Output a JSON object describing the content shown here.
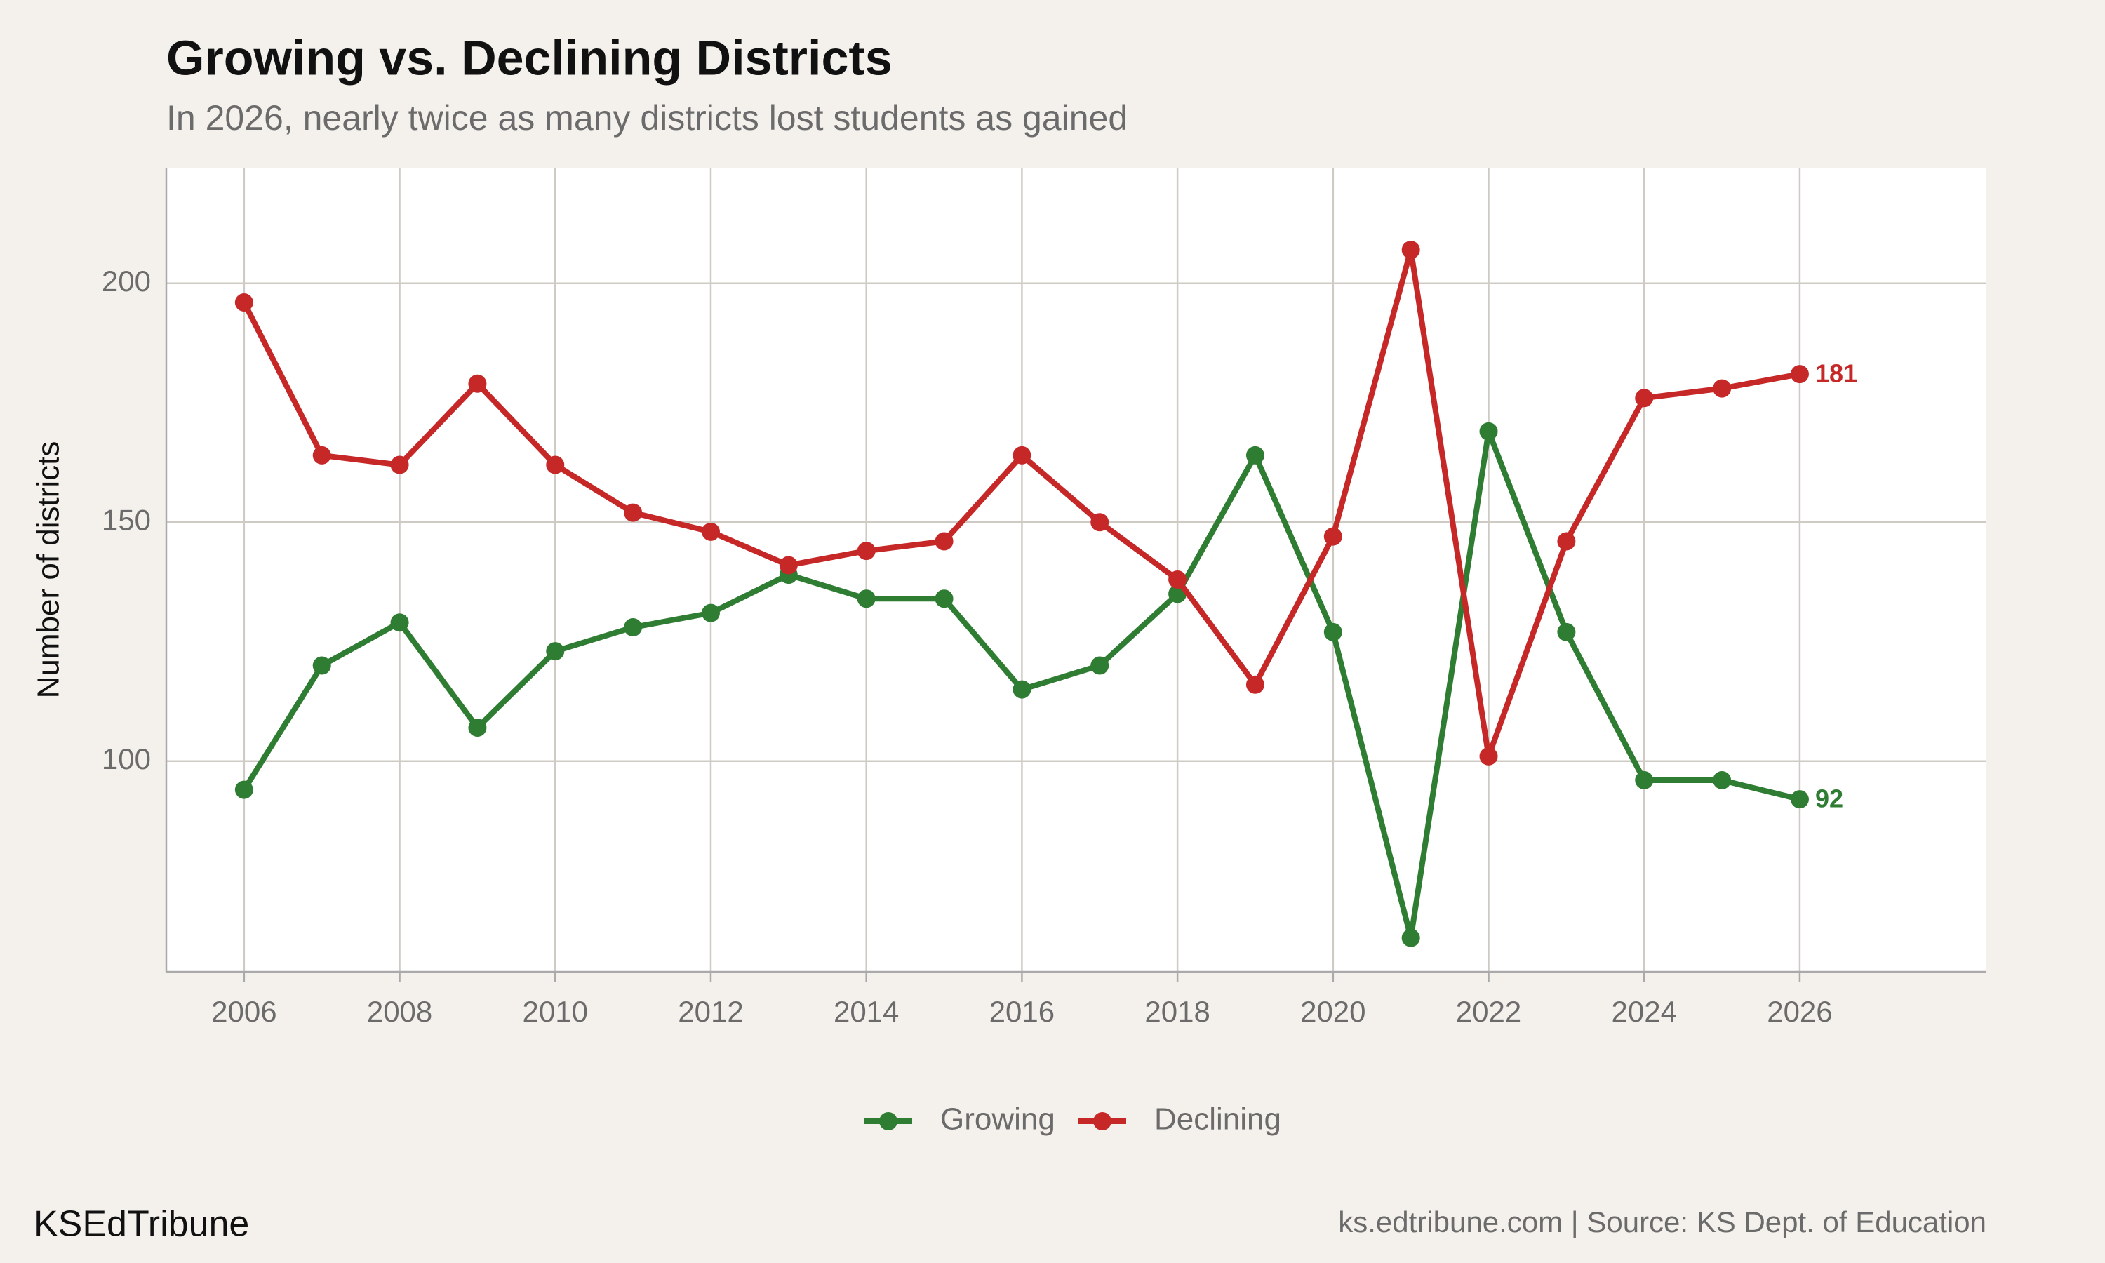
{
  "chart_data": {
    "type": "line",
    "title": "Growing vs. Declining Districts",
    "subtitle": "In 2026, nearly twice as many districts lost students as gained",
    "y_label": "Number of districts",
    "brand": "KSEdTribune",
    "caption": "ks.edtribune.com | Source: KS Dept. of Education",
    "x": [
      2006,
      2007,
      2008,
      2009,
      2010,
      2011,
      2012,
      2013,
      2014,
      2015,
      2016,
      2017,
      2018,
      2019,
      2020,
      2021,
      2022,
      2023,
      2024,
      2025,
      2026
    ],
    "series": [
      {
        "name": "Growing",
        "color": "#2e7d32",
        "values": [
          94,
          120,
          129,
          107,
          123,
          128,
          131,
          139,
          134,
          134,
          115,
          120,
          135,
          164,
          127,
          63,
          169,
          127,
          96,
          96,
          92
        ]
      },
      {
        "name": "Declining",
        "color": "#c62828",
        "values": [
          196,
          164,
          162,
          179,
          162,
          152,
          148,
          141,
          144,
          146,
          164,
          150,
          138,
          116,
          147,
          207,
          101,
          146,
          176,
          178,
          181
        ]
      }
    ],
    "xlim": [
      2005,
      2028.4
    ],
    "xticks": [
      2006,
      2008,
      2010,
      2012,
      2014,
      2016,
      2018,
      2020,
      2022,
      2024,
      2026
    ],
    "ylim": [
      55.9,
      224.2
    ],
    "yticks": [
      100,
      150,
      200
    ],
    "grid": true,
    "legend": "bottom"
  }
}
